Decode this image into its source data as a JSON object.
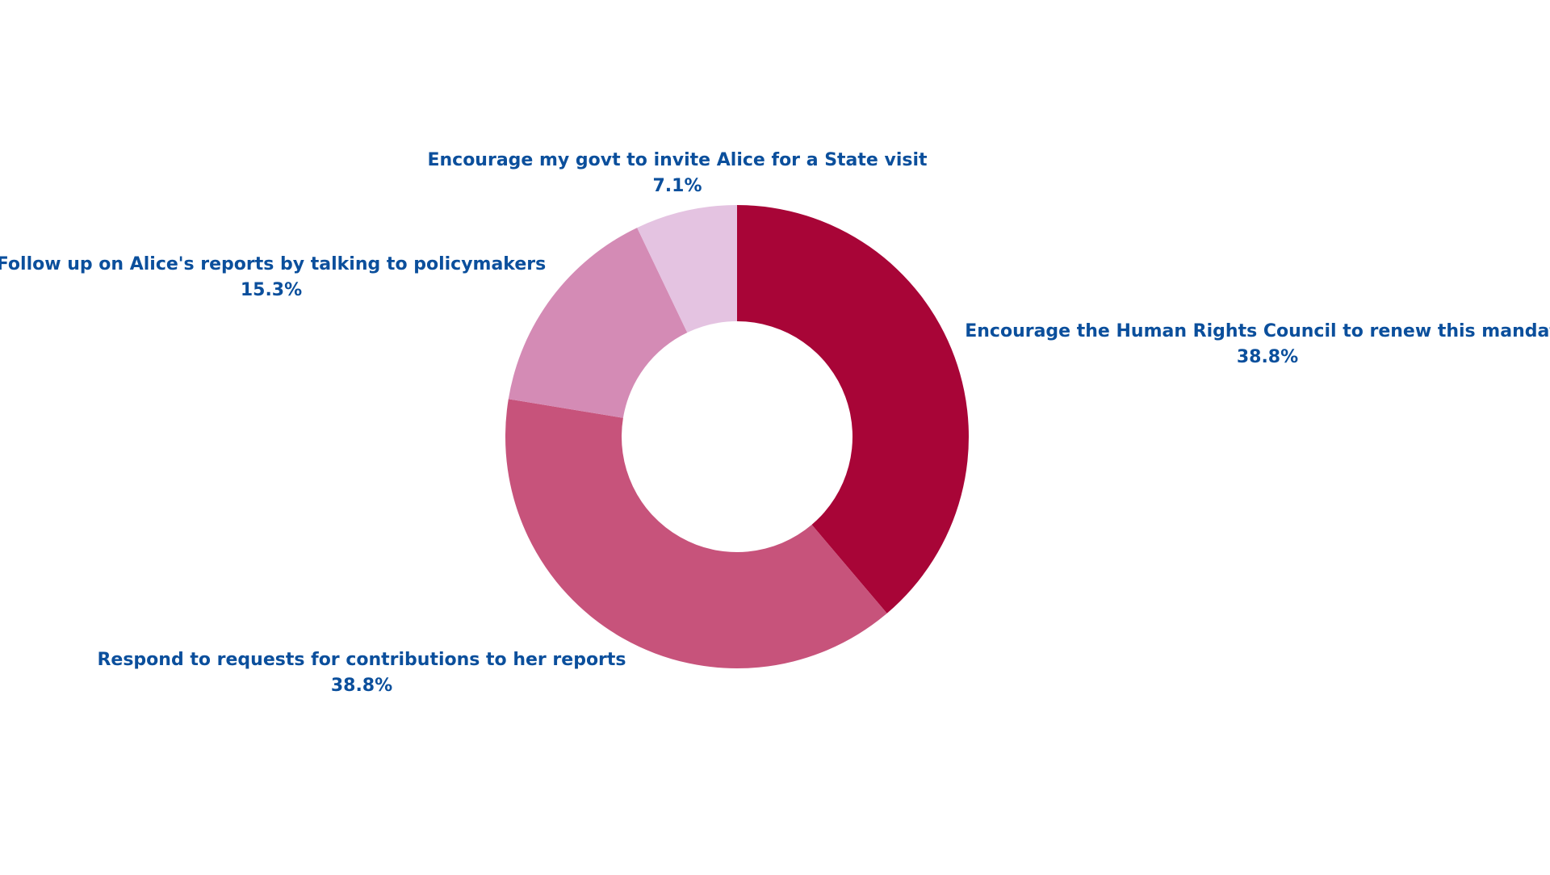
{
  "chart_data": {
    "type": "pie",
    "style": "donut",
    "title": "",
    "slices": [
      {
        "label": "Encourage the Human Rights Council to renew this mandate",
        "value": 38.8,
        "value_label": "38.8%",
        "color": "#a80537"
      },
      {
        "label": "Respond to requests for contributions to her reports",
        "value": 38.8,
        "value_label": "38.8%",
        "color": "#c7537b"
      },
      {
        "label": "Follow up on Alice's reports by talking to policymakers",
        "value": 15.3,
        "value_label": "15.3%",
        "color": "#d48bb5"
      },
      {
        "label": "Encourage my govt to invite Alice for a State visit",
        "value": 7.1,
        "value_label": "7.1%",
        "color": "#e4c3e1"
      }
    ],
    "label_color": "#0b4f9c",
    "background": "#ffffff"
  }
}
